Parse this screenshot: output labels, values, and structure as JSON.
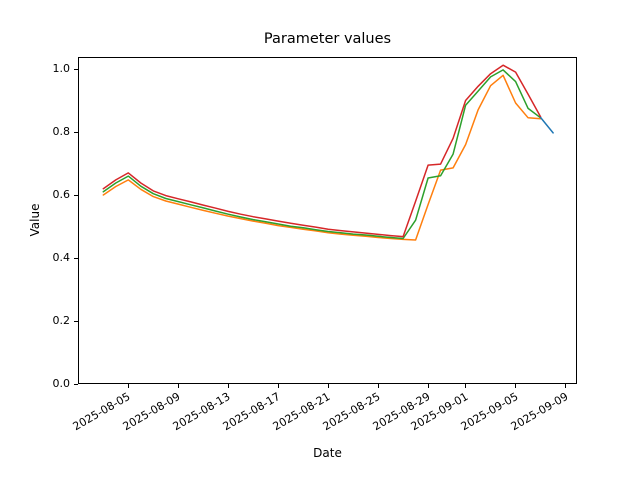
{
  "figure": {
    "background": "#ffffff"
  },
  "chart_data": {
    "type": "line",
    "title": "Parameter values",
    "xlabel": "Date",
    "ylabel": "Value",
    "grid": false,
    "legend": null,
    "ylim": [
      0.0,
      1.038
    ],
    "xlim": [
      "2025-08-01",
      "2025-09-10"
    ],
    "y_ticks": [
      "0.0",
      "0.2",
      "0.4",
      "0.6",
      "0.8",
      "1.0"
    ],
    "x_ticks": [
      "2025-08-05",
      "2025-08-09",
      "2025-08-13",
      "2025-08-17",
      "2025-08-21",
      "2025-08-25",
      "2025-08-29",
      "2025-09-01",
      "2025-09-05",
      "2025-09-09"
    ],
    "x": [
      "2025-08-03",
      "2025-08-04",
      "2025-08-05",
      "2025-08-06",
      "2025-08-07",
      "2025-08-08",
      "2025-08-09",
      "2025-08-10",
      "2025-08-11",
      "2025-08-12",
      "2025-08-13",
      "2025-08-14",
      "2025-08-15",
      "2025-08-16",
      "2025-08-17",
      "2025-08-18",
      "2025-08-19",
      "2025-08-20",
      "2025-08-21",
      "2025-08-22",
      "2025-08-23",
      "2025-08-24",
      "2025-08-25",
      "2025-08-26",
      "2025-08-27",
      "2025-08-28",
      "2025-08-29",
      "2025-08-30",
      "2025-08-31",
      "2025-09-01",
      "2025-09-02",
      "2025-09-03",
      "2025-09-04",
      "2025-09-05",
      "2025-09-06",
      "2025-09-07"
    ],
    "series": [
      {
        "name": "orange",
        "color": "#ff7f0e",
        "y": [
          0.6,
          0.627,
          0.648,
          0.618,
          0.595,
          0.581,
          0.571,
          0.561,
          0.551,
          0.542,
          0.533,
          0.525,
          0.517,
          0.51,
          0.503,
          0.497,
          0.491,
          0.486,
          0.48,
          0.476,
          0.472,
          0.469,
          0.465,
          0.462,
          0.459,
          0.457,
          0.57,
          0.679,
          0.686,
          0.76,
          0.87,
          0.947,
          0.98,
          0.892,
          0.845,
          0.842
        ]
      },
      {
        "name": "green",
        "color": "#2ca02c",
        "y": [
          0.61,
          0.638,
          0.66,
          0.628,
          0.604,
          0.589,
          0.579,
          0.569,
          0.559,
          0.549,
          0.539,
          0.53,
          0.522,
          0.515,
          0.508,
          0.501,
          0.496,
          0.49,
          0.484,
          0.48,
          0.476,
          0.473,
          0.469,
          0.465,
          0.462,
          0.52,
          0.654,
          0.661,
          0.73,
          0.885,
          0.93,
          0.975,
          0.997,
          0.96,
          0.875,
          0.845
        ]
      },
      {
        "name": "red",
        "color": "#d62728",
        "y": [
          0.62,
          0.648,
          0.67,
          0.638,
          0.613,
          0.598,
          0.588,
          0.578,
          0.568,
          0.558,
          0.548,
          0.539,
          0.531,
          0.524,
          0.517,
          0.51,
          0.504,
          0.498,
          0.491,
          0.487,
          0.483,
          0.479,
          0.475,
          0.471,
          0.468,
          0.58,
          0.695,
          0.698,
          0.78,
          0.9,
          0.945,
          0.985,
          1.012,
          0.99,
          0.92,
          0.848
        ]
      },
      {
        "name": "blue",
        "color": "#1f77b4",
        "x": [
          "2025-09-07",
          "2025-09-08"
        ],
        "y": [
          0.846,
          0.797
        ]
      }
    ]
  }
}
